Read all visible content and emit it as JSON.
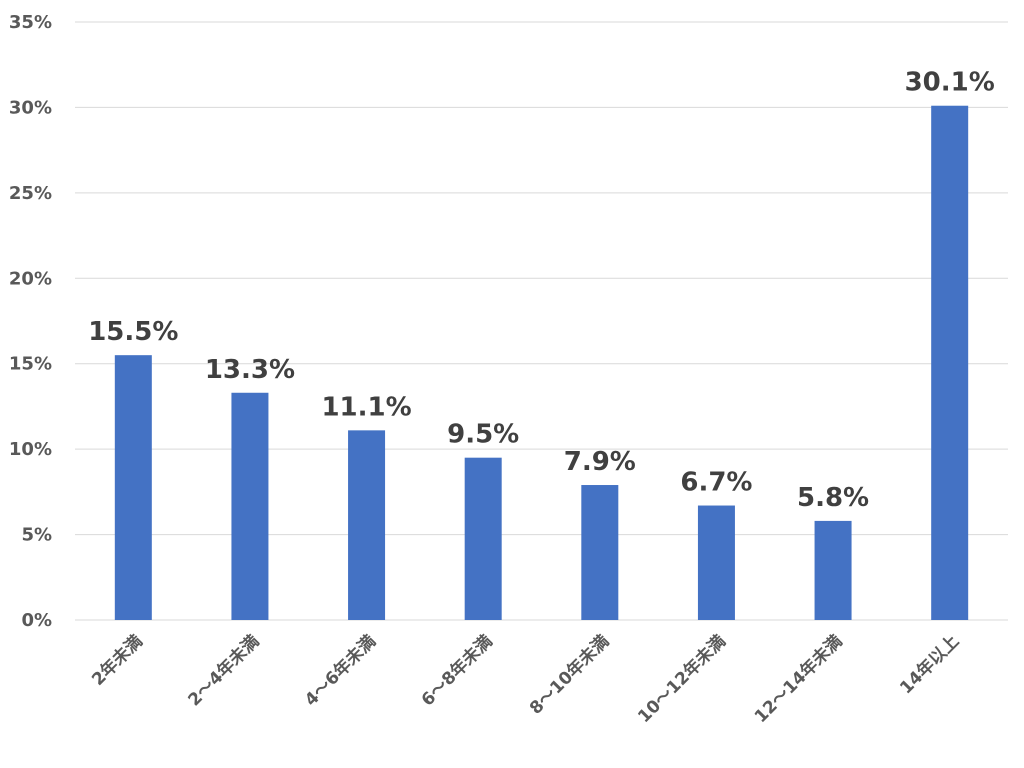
{
  "chart_data": {
    "type": "bar",
    "categories": [
      "2年未満",
      "2～4年未満",
      "4～6年未満",
      "6～8年未満",
      "8～10年未満",
      "10～12年未満",
      "12～14年未満",
      "14年以上"
    ],
    "values": [
      15.5,
      13.3,
      11.1,
      9.5,
      7.9,
      6.7,
      5.8,
      30.1
    ],
    "data_labels": [
      "15.5%",
      "13.3%",
      "11.1%",
      "9.5%",
      "7.9%",
      "6.7%",
      "5.8%",
      "30.1%"
    ],
    "y_ticks": [
      "0%",
      "5%",
      "10%",
      "15%",
      "20%",
      "25%",
      "30%",
      "35%"
    ],
    "ylim": [
      0,
      35
    ],
    "y_tick_step": 5,
    "grid": true,
    "legend": "none",
    "bar_color": "#4472c4",
    "title": "",
    "xlabel": "",
    "ylabel": ""
  }
}
